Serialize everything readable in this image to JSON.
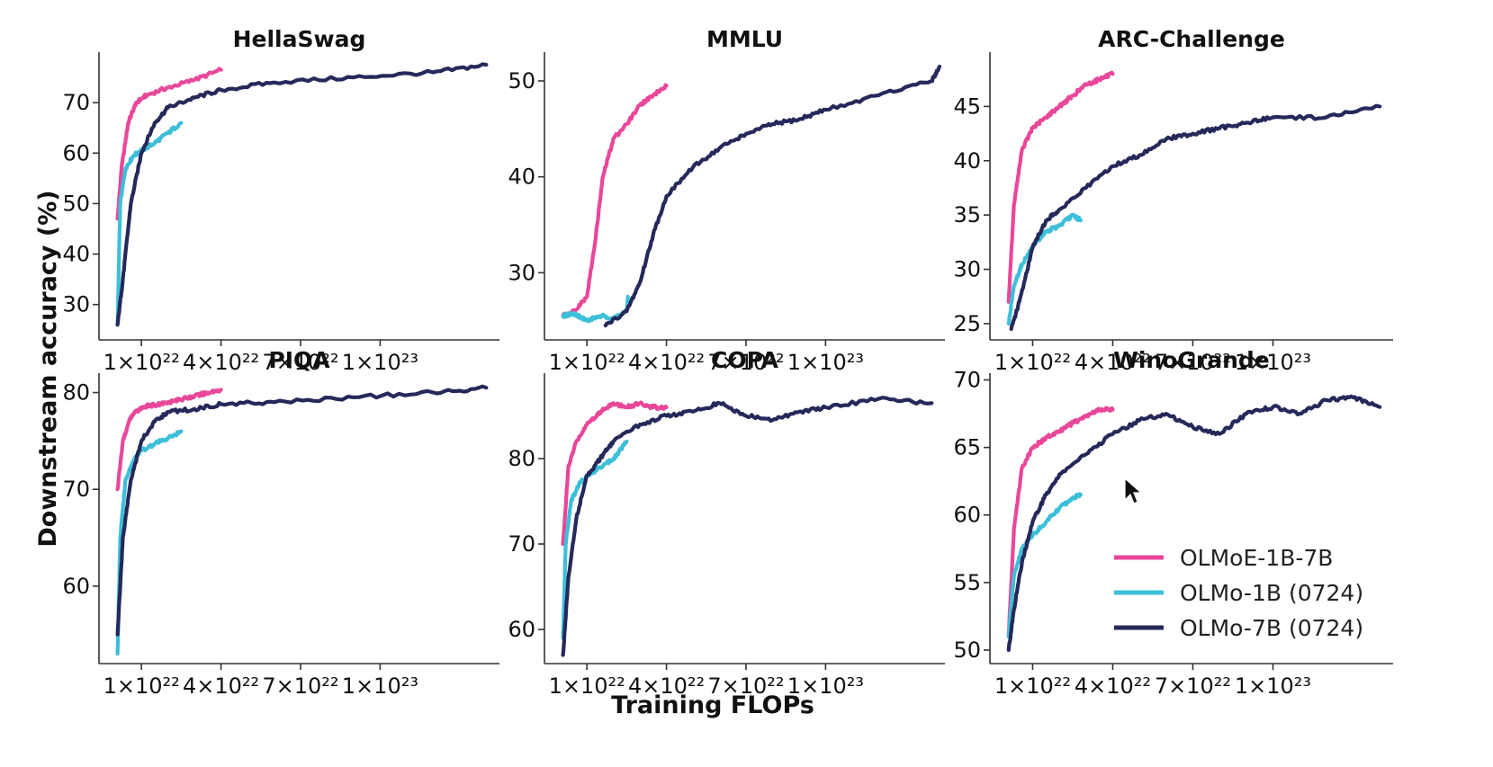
{
  "figure": {
    "xlabel": "Training FLOPs",
    "ylabel": "Downstream accuracy (%)"
  },
  "colors": {
    "OLMoE-1B-7B": "#e8479a",
    "OLMo-1B (0724)": "#3dbfd9",
    "OLMo-7B (0724)": "#25295a"
  },
  "legend": {
    "placement": "lower-right of WinoGrande panel",
    "entries": [
      {
        "name": "OLMoE-1B-7B",
        "color": "#e8479a"
      },
      {
        "name": "OLMo-1B (0724)",
        "color": "#3dbfd9"
      },
      {
        "name": "OLMo-7B (0724)",
        "color": "#25295a"
      }
    ]
  },
  "chart_data": [
    {
      "type": "line",
      "title": "HellaSwag",
      "xlabel": "",
      "ylabel": "",
      "xlim": [
        -6e+21,
        1.45e+23
      ],
      "ylim": [
        23,
        80
      ],
      "xticks": [
        1e+22,
        4e+22,
        7e+22,
        1e+23
      ],
      "xtick_labels": [
        "1×10²²",
        "4×10²²",
        "7×10²²",
        "1×10²³"
      ],
      "yticks": [
        30,
        40,
        50,
        60,
        70
      ],
      "series": [
        {
          "name": "OLMoE-1B-7B",
          "x": [
            1e+21,
            2.5e+21,
            5e+21,
            8e+21,
            1.2e+22,
            2e+22,
            3e+22,
            4e+22
          ],
          "y": [
            47,
            57,
            66,
            70,
            71.5,
            73,
            74.5,
            76.5
          ]
        },
        {
          "name": "OLMo-1B (0724)",
          "x": [
            1e+21,
            2e+21,
            4e+21,
            7e+21,
            1e+22,
            1.5e+22,
            2e+22,
            2.5e+22
          ],
          "y": [
            26,
            50,
            57,
            59.5,
            60.5,
            62,
            64,
            66
          ]
        },
        {
          "name": "OLMo-7B (0724)",
          "x": [
            1e+21,
            3e+21,
            6e+21,
            1e+22,
            1.5e+22,
            2e+22,
            3e+22,
            4e+22,
            6e+22,
            9e+22,
            1.2e+23,
            1.4e+23
          ],
          "y": [
            26,
            35,
            50,
            60,
            66,
            69,
            71,
            72.5,
            74,
            75,
            76,
            77.5
          ]
        }
      ]
    },
    {
      "type": "line",
      "title": "MMLU",
      "xlabel": "",
      "ylabel": "",
      "xlim": [
        -6e+21,
        1.45e+23
      ],
      "ylim": [
        23,
        53
      ],
      "xticks": [
        1e+22,
        4e+22,
        7e+22,
        1e+23
      ],
      "xtick_labels": [
        "1×10²²",
        "4×10²²",
        "7×10²²",
        "1×10²³"
      ],
      "yticks": [
        30,
        40,
        50
      ],
      "series": [
        {
          "name": "OLMoE-1B-7B",
          "x": [
            1e+21,
            5e+21,
            1e+22,
            1.3e+22,
            1.6e+22,
            2e+22,
            2.5e+22,
            3e+22,
            3.5e+22,
            4e+22
          ],
          "y": [
            25.5,
            26,
            27.5,
            33,
            40,
            44,
            45.5,
            47.5,
            48.5,
            49.5
          ]
        },
        {
          "name": "OLMo-1B (0724)",
          "x": [
            1e+21,
            5e+21,
            1e+22,
            1.5e+22,
            2e+22,
            2.5e+22,
            2.55e+22
          ],
          "y": [
            25.5,
            25.8,
            25,
            25.5,
            25.3,
            26,
            27.5
          ]
        },
        {
          "name": "OLMo-7B (0724)",
          "x": [
            1.7e+22,
            2.5e+22,
            3e+22,
            3.5e+22,
            4e+22,
            5e+22,
            6e+22,
            7e+22,
            8e+22,
            9e+22,
            1e+23,
            1.2e+23,
            1.4e+23,
            1.43e+23
          ],
          "y": [
            24.5,
            26,
            29,
            34,
            38,
            41,
            43,
            44.5,
            45.5,
            46,
            47,
            48.5,
            50,
            51.5
          ]
        }
      ]
    },
    {
      "type": "line",
      "title": "ARC-Challenge",
      "xlabel": "",
      "ylabel": "",
      "xlim": [
        -6e+21,
        1.45e+23
      ],
      "ylim": [
        23.5,
        50
      ],
      "xticks": [
        1e+22,
        4e+22,
        7e+22,
        1e+23
      ],
      "xtick_labels": [
        "1×10²²",
        "4×10²²",
        "7×10²²",
        "1×10²³"
      ],
      "yticks": [
        25,
        30,
        35,
        40,
        45
      ],
      "series": [
        {
          "name": "OLMoE-1B-7B",
          "x": [
            1e+21,
            3e+21,
            6e+21,
            1e+22,
            1.5e+22,
            2e+22,
            2.5e+22,
            3e+22,
            3.5e+22,
            4e+22
          ],
          "y": [
            27,
            36,
            41,
            43,
            44,
            45,
            46,
            47,
            47.5,
            48
          ]
        },
        {
          "name": "OLMo-1B (0724)",
          "x": [
            1e+21,
            3e+21,
            6e+21,
            1e+22,
            1.5e+22,
            2e+22,
            2.5e+22,
            2.8e+22
          ],
          "y": [
            25,
            28.5,
            30.5,
            32,
            33.5,
            34,
            35,
            34.5
          ]
        },
        {
          "name": "OLMo-7B (0724)",
          "x": [
            2e+21,
            5e+21,
            1e+22,
            1.5e+22,
            2e+22,
            3e+22,
            4e+22,
            5e+22,
            6e+22,
            7e+22,
            8e+22,
            9e+22,
            1e+23,
            1.2e+23,
            1.4e+23
          ],
          "y": [
            24.5,
            27,
            32,
            34.5,
            35.5,
            37.5,
            39.5,
            40.5,
            42,
            42.5,
            43,
            43.5,
            44,
            44,
            45
          ]
        }
      ]
    },
    {
      "type": "line",
      "title": "PIQA",
      "xlabel": "",
      "ylabel": "",
      "xlim": [
        -6e+21,
        1.45e+23
      ],
      "ylim": [
        52,
        82
      ],
      "xticks": [
        1e+22,
        4e+22,
        7e+22,
        1e+23
      ],
      "xtick_labels": [
        "1×10²²",
        "4×10²²",
        "7×10²²",
        "1×10²³"
      ],
      "yticks": [
        60,
        70,
        80
      ],
      "series": [
        {
          "name": "OLMoE-1B-7B",
          "x": [
            1e+21,
            3e+21,
            6e+21,
            1e+22,
            1.5e+22,
            2e+22,
            2.5e+22,
            3e+22,
            3.5e+22,
            4e+22
          ],
          "y": [
            70,
            75,
            77.5,
            78.5,
            78.7,
            79,
            79.3,
            79.6,
            80,
            80.3
          ]
        },
        {
          "name": "OLMo-1B (0724)",
          "x": [
            1e+21,
            2e+21,
            4e+21,
            7e+21,
            1e+22,
            1.5e+22,
            2e+22,
            2.5e+22
          ],
          "y": [
            53,
            65,
            71,
            73,
            74,
            74.7,
            75.3,
            76
          ]
        },
        {
          "name": "OLMo-7B (0724)",
          "x": [
            1e+21,
            3e+21,
            6e+21,
            1e+22,
            1.5e+22,
            2e+22,
            3e+22,
            4e+22,
            6e+22,
            9e+22,
            1.2e+23,
            1.4e+23
          ],
          "y": [
            55,
            65,
            71,
            75,
            77,
            78,
            78.3,
            78.8,
            79,
            79.5,
            80,
            80.5
          ]
        }
      ]
    },
    {
      "type": "line",
      "title": "COPA",
      "xlabel": "",
      "ylabel": "",
      "xlim": [
        -6e+21,
        1.45e+23
      ],
      "ylim": [
        56,
        90
      ],
      "xticks": [
        1e+22,
        4e+22,
        7e+22,
        1e+23
      ],
      "xtick_labels": [
        "1×10²²",
        "4×10²²",
        "7×10²²",
        "1×10²³"
      ],
      "yticks": [
        60,
        70,
        80
      ],
      "series": [
        {
          "name": "OLMoE-1B-7B",
          "x": [
            1e+21,
            3e+21,
            6e+21,
            1e+22,
            1.5e+22,
            2e+22,
            2.5e+22,
            3e+22,
            3.5e+22,
            4e+22
          ],
          "y": [
            70,
            79,
            82,
            84,
            85.5,
            86.5,
            86,
            86.5,
            86,
            86
          ]
        },
        {
          "name": "OLMo-1B (0724)",
          "x": [
            1e+21,
            2e+21,
            4e+21,
            7e+21,
            1e+22,
            1.5e+22,
            2e+22,
            2.5e+22
          ],
          "y": [
            59,
            70,
            75,
            77,
            78,
            79,
            80,
            82
          ]
        },
        {
          "name": "OLMo-7B (0724)",
          "x": [
            1e+21,
            3e+21,
            6e+21,
            1e+22,
            1.5e+22,
            2e+22,
            3e+22,
            4e+22,
            5e+22,
            6e+22,
            7e+22,
            8e+22,
            9e+22,
            1e+23,
            1.2e+23,
            1.4e+23
          ],
          "y": [
            57,
            66,
            73,
            78,
            80,
            82,
            84,
            85,
            85.5,
            86.5,
            85,
            84.5,
            85.5,
            86,
            87,
            86.5
          ]
        }
      ]
    },
    {
      "type": "line",
      "title": "WinoGrande",
      "xlabel": "",
      "ylabel": "",
      "xlim": [
        -6e+21,
        1.45e+23
      ],
      "ylim": [
        49,
        70.5
      ],
      "xticks": [
        1e+22,
        4e+22,
        7e+22,
        1e+23
      ],
      "xtick_labels": [
        "1×10²²",
        "4×10²²",
        "7×10²²",
        "1×10²³"
      ],
      "yticks": [
        50,
        55,
        60,
        65,
        70
      ],
      "series": [
        {
          "name": "OLMoE-1B-7B",
          "x": [
            1e+21,
            3e+21,
            6e+21,
            1e+22,
            1.5e+22,
            2e+22,
            2.5e+22,
            3e+22,
            3.5e+22,
            4e+22
          ],
          "y": [
            51,
            59,
            63.5,
            65,
            65.7,
            66.2,
            66.8,
            67.3,
            67.8,
            67.8
          ]
        },
        {
          "name": "OLMo-1B (0724)",
          "x": [
            1e+21,
            3e+21,
            6e+21,
            1e+22,
            1.5e+22,
            2e+22,
            2.5e+22,
            2.8e+22
          ],
          "y": [
            51,
            55.5,
            57.5,
            58.5,
            59.5,
            60.5,
            61.3,
            61.5
          ]
        },
        {
          "name": "OLMo-7B (0724)",
          "x": [
            1e+21,
            3e+21,
            6e+21,
            1e+22,
            1.5e+22,
            2e+22,
            3e+22,
            4e+22,
            5e+22,
            6e+22,
            7e+22,
            8e+22,
            9e+22,
            1e+23,
            1.1e+23,
            1.2e+23,
            1.3e+23,
            1.4e+23
          ],
          "y": [
            50,
            53,
            56.5,
            59.5,
            61.5,
            63,
            64.5,
            66,
            67,
            67.5,
            66.5,
            66,
            67.5,
            68,
            67.5,
            68.5,
            68.7,
            68
          ]
        }
      ]
    }
  ]
}
